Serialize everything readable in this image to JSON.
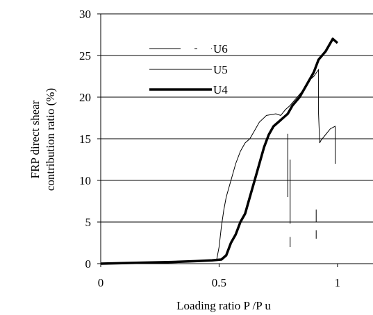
{
  "chart_data": {
    "type": "line",
    "xlabel": "Loading ratio P /P u",
    "ylabel_lines": [
      "FRP direct shear",
      "contribution ratio (%)"
    ],
    "xlim": [
      0,
      1.15
    ],
    "ylim": [
      0,
      30
    ],
    "x_ticks": [
      0,
      0.5,
      1
    ],
    "x_tick_labels": [
      "0",
      "0.5",
      "1"
    ],
    "y_ticks": [
      0,
      5,
      10,
      15,
      20,
      25,
      30
    ],
    "y_tick_labels": [
      "0",
      "5",
      "10",
      "15",
      "20",
      "25",
      "30"
    ],
    "grid": "horizontal",
    "legend_position": "top-left",
    "series": [
      {
        "name": "U6",
        "style": "dashed-thin",
        "segments": [
          [
            [
              0.79,
              15.6
            ],
            [
              0.79,
              8.0
            ]
          ],
          [
            [
              0.8,
              12.5
            ],
            [
              0.8,
              4.8
            ]
          ],
          [
            [
              0.8,
              3.2
            ],
            [
              0.8,
              2.0
            ]
          ],
          [
            [
              0.91,
              6.5
            ],
            [
              0.91,
              5.0
            ]
          ],
          [
            [
              0.91,
              4.0
            ],
            [
              0.91,
              3.0
            ]
          ]
        ]
      },
      {
        "name": "U5",
        "style": "thin",
        "points": [
          [
            0,
            0
          ],
          [
            0.15,
            0.1
          ],
          [
            0.3,
            0.2
          ],
          [
            0.45,
            0.3
          ],
          [
            0.49,
            0.5
          ],
          [
            0.5,
            2.0
          ],
          [
            0.51,
            4.5
          ],
          [
            0.52,
            6.5
          ],
          [
            0.53,
            8.0
          ],
          [
            0.55,
            10.0
          ],
          [
            0.57,
            12.0
          ],
          [
            0.59,
            13.5
          ],
          [
            0.61,
            14.5
          ],
          [
            0.63,
            15.0
          ],
          [
            0.65,
            16.0
          ],
          [
            0.67,
            17.0
          ],
          [
            0.7,
            17.8
          ],
          [
            0.74,
            18.0
          ],
          [
            0.76,
            17.8
          ],
          [
            0.78,
            18.5
          ],
          [
            0.8,
            19.0
          ],
          [
            0.83,
            20.0
          ],
          [
            0.86,
            21.0
          ],
          [
            0.88,
            22.0
          ],
          [
            0.9,
            22.5
          ],
          [
            0.92,
            23.3
          ],
          [
            0.92,
            18.0
          ],
          [
            0.925,
            14.5
          ],
          [
            0.93,
            14.8
          ],
          [
            0.95,
            15.5
          ],
          [
            0.97,
            16.2
          ],
          [
            0.99,
            16.5
          ],
          [
            0.99,
            12.0
          ]
        ]
      },
      {
        "name": "U4",
        "style": "thick",
        "points": [
          [
            0,
            0
          ],
          [
            0.15,
            0.1
          ],
          [
            0.3,
            0.2
          ],
          [
            0.4,
            0.3
          ],
          [
            0.47,
            0.4
          ],
          [
            0.51,
            0.5
          ],
          [
            0.53,
            1.0
          ],
          [
            0.55,
            2.5
          ],
          [
            0.57,
            3.5
          ],
          [
            0.59,
            5.0
          ],
          [
            0.61,
            6.0
          ],
          [
            0.63,
            8.0
          ],
          [
            0.65,
            10.0
          ],
          [
            0.67,
            12.0
          ],
          [
            0.69,
            14.0
          ],
          [
            0.71,
            15.5
          ],
          [
            0.73,
            16.5
          ],
          [
            0.75,
            17.0
          ],
          [
            0.77,
            17.5
          ],
          [
            0.79,
            18.0
          ],
          [
            0.81,
            19.0
          ],
          [
            0.84,
            20.0
          ],
          [
            0.87,
            21.5
          ],
          [
            0.9,
            23.0
          ],
          [
            0.92,
            24.5
          ],
          [
            0.95,
            25.5
          ],
          [
            0.98,
            27.0
          ],
          [
            1.0,
            26.5
          ]
        ]
      }
    ]
  }
}
